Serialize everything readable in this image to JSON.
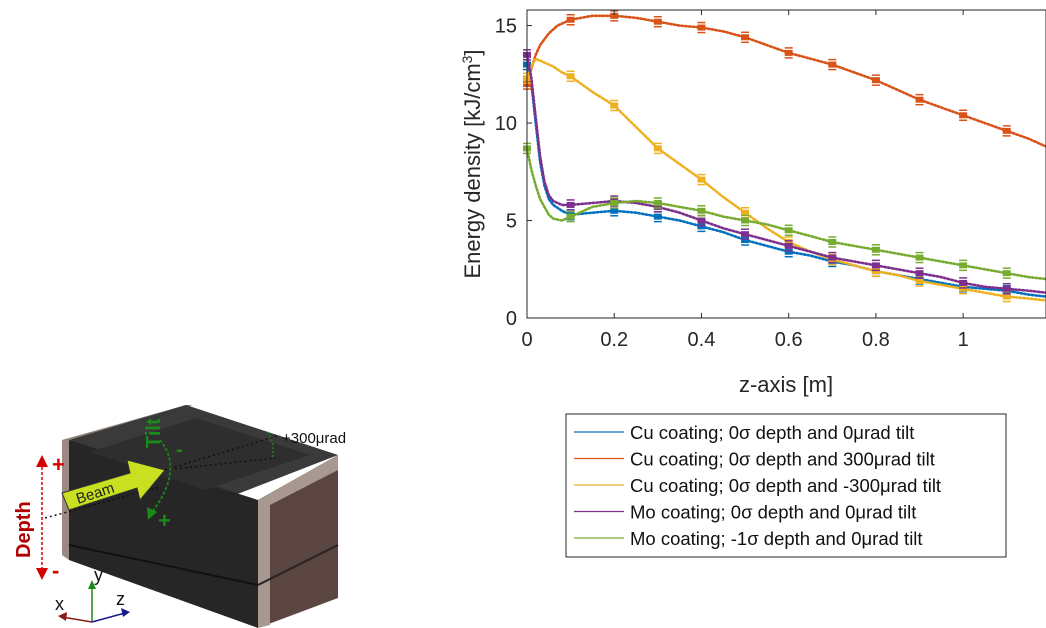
{
  "chart_data": {
    "type": "scatter",
    "xlabel": "z-axis [m]",
    "ylabel": "Energy density [kJ/cm",
    "ylabel_sup": "3",
    "ylabel_close": "]",
    "xlim": [
      0,
      1.19
    ],
    "ylim": [
      0,
      15.8
    ],
    "xticks": [
      0,
      0.2,
      0.4,
      0.6,
      0.8,
      1
    ],
    "xtick_labels": [
      "0",
      "0.2",
      "0.4",
      "0.6",
      "0.8",
      "1"
    ],
    "yticks": [
      0,
      5,
      10,
      15
    ],
    "ytick_labels": [
      "0",
      "5",
      "10",
      "15"
    ],
    "grid": false,
    "legend_position": "below-right",
    "series": [
      {
        "name": "Cu coating; 0σ depth and 0μrad tilt",
        "color": "#0072BD",
        "errbar_x": [
          0,
          0.1,
          0.2,
          0.3,
          0.4,
          0.5,
          0.6,
          0.7,
          0.8,
          0.9,
          1.0,
          1.1
        ],
        "x": [
          0,
          0.01,
          0.02,
          0.03,
          0.04,
          0.05,
          0.06,
          0.08,
          0.1,
          0.15,
          0.2,
          0.25,
          0.3,
          0.35,
          0.4,
          0.45,
          0.5,
          0.55,
          0.6,
          0.65,
          0.7,
          0.75,
          0.8,
          0.85,
          0.9,
          0.95,
          1.0,
          1.05,
          1.1,
          1.15,
          1.19
        ],
        "y": [
          13.0,
          12.0,
          10.0,
          8.0,
          6.8,
          6.1,
          5.8,
          5.5,
          5.3,
          5.4,
          5.5,
          5.4,
          5.2,
          5.0,
          4.7,
          4.4,
          4.0,
          3.7,
          3.4,
          3.2,
          2.9,
          2.7,
          2.4,
          2.2,
          2.0,
          1.8,
          1.6,
          1.5,
          1.4,
          1.2,
          1.1
        ]
      },
      {
        "name": "Cu coating; 0σ depth and 300μrad tilt",
        "color": "#D95319",
        "errbar_x": [
          0,
          0.1,
          0.2,
          0.3,
          0.4,
          0.5,
          0.6,
          0.7,
          0.8,
          0.9,
          1.0,
          1.1
        ],
        "x": [
          0,
          0.01,
          0.02,
          0.03,
          0.05,
          0.07,
          0.1,
          0.15,
          0.2,
          0.25,
          0.3,
          0.35,
          0.4,
          0.45,
          0.5,
          0.55,
          0.6,
          0.65,
          0.7,
          0.75,
          0.8,
          0.85,
          0.9,
          0.95,
          1.0,
          1.05,
          1.1,
          1.15,
          1.19
        ],
        "y": [
          12.0,
          12.8,
          13.5,
          14.0,
          14.6,
          15.0,
          15.3,
          15.5,
          15.5,
          15.4,
          15.2,
          15.0,
          14.9,
          14.7,
          14.4,
          14.0,
          13.6,
          13.3,
          13.0,
          12.6,
          12.2,
          11.7,
          11.2,
          10.8,
          10.4,
          10.0,
          9.6,
          9.2,
          8.8
        ]
      },
      {
        "name": "Cu coating; 0σ depth and -300μrad tilt",
        "color": "#EDB120",
        "errbar_x": [
          0,
          0.1,
          0.2,
          0.3,
          0.4,
          0.5,
          0.6,
          0.7,
          0.8,
          0.9,
          1.0,
          1.1
        ],
        "x": [
          0,
          0.01,
          0.02,
          0.04,
          0.06,
          0.08,
          0.1,
          0.15,
          0.2,
          0.25,
          0.3,
          0.35,
          0.4,
          0.45,
          0.5,
          0.55,
          0.6,
          0.65,
          0.7,
          0.75,
          0.8,
          0.85,
          0.9,
          0.95,
          1.0,
          1.05,
          1.1,
          1.15,
          1.19
        ],
        "y": [
          12.3,
          12.9,
          13.3,
          13.1,
          12.9,
          12.6,
          12.4,
          11.6,
          10.9,
          9.8,
          8.7,
          7.9,
          7.1,
          6.2,
          5.4,
          4.6,
          3.9,
          3.4,
          3.0,
          2.7,
          2.4,
          2.2,
          1.9,
          1.7,
          1.5,
          1.3,
          1.1,
          1.0,
          0.9
        ]
      },
      {
        "name": "Mo coating; 0σ depth and 0μrad tilt",
        "color": "#7E2F8E",
        "errbar_x": [
          0,
          0.1,
          0.2,
          0.3,
          0.4,
          0.5,
          0.6,
          0.7,
          0.8,
          0.9,
          1.0,
          1.1
        ],
        "x": [
          0,
          0.01,
          0.02,
          0.03,
          0.04,
          0.05,
          0.06,
          0.08,
          0.1,
          0.15,
          0.2,
          0.25,
          0.3,
          0.35,
          0.4,
          0.45,
          0.5,
          0.55,
          0.6,
          0.65,
          0.7,
          0.75,
          0.8,
          0.85,
          0.9,
          0.95,
          1.0,
          1.05,
          1.1,
          1.15,
          1.19
        ],
        "y": [
          13.5,
          12.3,
          10.3,
          8.3,
          7.0,
          6.3,
          6.0,
          5.8,
          5.8,
          5.9,
          6.0,
          5.9,
          5.7,
          5.4,
          5.0,
          4.6,
          4.3,
          4.0,
          3.7,
          3.4,
          3.1,
          2.9,
          2.7,
          2.5,
          2.3,
          2.1,
          1.8,
          1.6,
          1.5,
          1.4,
          1.3
        ]
      },
      {
        "name": "Mo coating; -1σ depth and 0μrad tilt",
        "color": "#77AC30",
        "errbar_x": [
          0,
          0.1,
          0.2,
          0.3,
          0.4,
          0.5,
          0.6,
          0.7,
          0.8,
          0.9,
          1.0,
          1.1
        ],
        "x": [
          0,
          0.01,
          0.02,
          0.03,
          0.04,
          0.05,
          0.06,
          0.08,
          0.1,
          0.15,
          0.2,
          0.25,
          0.3,
          0.35,
          0.4,
          0.45,
          0.5,
          0.55,
          0.6,
          0.65,
          0.7,
          0.75,
          0.8,
          0.85,
          0.9,
          0.95,
          1.0,
          1.05,
          1.1,
          1.15,
          1.19
        ],
        "y": [
          8.7,
          7.6,
          6.8,
          6.1,
          5.7,
          5.3,
          5.1,
          5.0,
          5.2,
          5.7,
          5.9,
          6.0,
          5.9,
          5.7,
          5.5,
          5.2,
          5.0,
          4.8,
          4.5,
          4.2,
          3.9,
          3.7,
          3.5,
          3.3,
          3.1,
          2.9,
          2.7,
          2.5,
          2.3,
          2.1,
          2.0
        ]
      }
    ]
  },
  "illustration": {
    "depth_label": "Depth",
    "depth_plus": "+",
    "depth_minus": "-",
    "tilt_label": "Tilt",
    "tilt_minus": "-",
    "tilt_plus": "+",
    "beam_label": "Beam",
    "angle_label": "+300μrad",
    "axis_x": "x",
    "axis_y": "y",
    "axis_z": "z",
    "colors": {
      "block_top": "#3a3a3a",
      "block_front": "#262626",
      "block_side": "#5a4540",
      "depth": "#d50000",
      "tilt": "#1a8a1a",
      "beam": "#c8e020",
      "axis_x": "#8b1a1a",
      "axis_y": "#1a8a1a",
      "axis_z": "#1a1a8b"
    }
  }
}
